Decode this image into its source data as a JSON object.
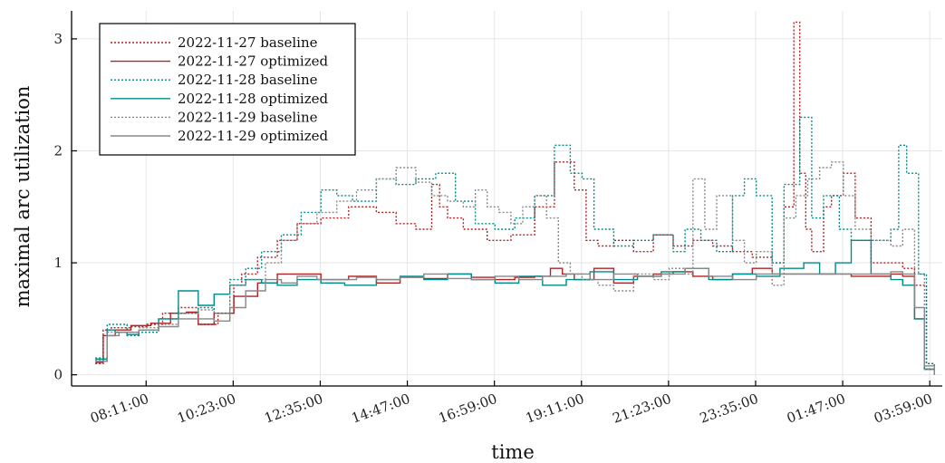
{
  "chart_data": {
    "type": "line",
    "xlabel": "time",
    "ylabel": "maximal arc utilization",
    "x_ticks": [
      "08:11:00",
      "10:23:00",
      "12:35:00",
      "14:47:00",
      "16:59:00",
      "19:11:00",
      "21:23:00",
      "23:35:00",
      "01:47:00",
      "03:59:00"
    ],
    "y_ticks": [
      0,
      1,
      2,
      3
    ],
    "xlim_hours": [
      6.3,
      28.3
    ],
    "ylim": [
      -0.1,
      3.25
    ],
    "grid": true,
    "legend_position": "top-left",
    "x_unit_note": "hours of day; values above 24 continue past midnight",
    "series": [
      {
        "name": "2022-11-27 baseline",
        "color": "#b22222",
        "dash": "dot",
        "x": [
          6.9,
          7.1,
          7.3,
          7.8,
          8.2,
          8.6,
          9.0,
          9.5,
          10.0,
          10.4,
          10.6,
          11.0,
          11.5,
          12.0,
          12.6,
          13.3,
          14.0,
          14.5,
          15.0,
          15.4,
          15.6,
          15.8,
          16.2,
          16.8,
          17.4,
          18.0,
          18.5,
          19.0,
          19.3,
          19.6,
          20.0,
          20.5,
          21.0,
          21.5,
          22.0,
          22.5,
          23.0,
          23.5,
          24.0,
          24.3,
          24.55,
          24.7,
          24.85,
          25.0,
          25.3,
          25.5,
          25.8,
          26.1,
          26.5,
          27.0,
          27.3,
          27.6,
          27.9,
          28.1
        ],
        "y": [
          0.1,
          0.4,
          0.42,
          0.43,
          0.45,
          0.55,
          0.6,
          0.45,
          0.55,
          0.8,
          0.9,
          1.05,
          1.2,
          1.35,
          1.4,
          1.5,
          1.45,
          1.35,
          1.3,
          1.7,
          1.5,
          1.4,
          1.3,
          1.2,
          1.25,
          1.5,
          1.9,
          1.65,
          1.2,
          1.15,
          1.2,
          1.1,
          1.25,
          1.15,
          1.2,
          1.15,
          1.1,
          1.05,
          1.0,
          1.5,
          3.15,
          1.8,
          1.3,
          1.1,
          1.5,
          1.6,
          1.8,
          1.4,
          1.0,
          1.0,
          0.95,
          0.8,
          0.1,
          0.0
        ]
      },
      {
        "name": "2022-11-27 optimized",
        "color": "#b22222",
        "dash": "solid",
        "x": [
          6.9,
          7.1,
          7.4,
          7.8,
          8.3,
          8.8,
          9.2,
          9.5,
          9.9,
          10.4,
          11.0,
          11.5,
          12.0,
          12.6,
          13.3,
          14.0,
          14.6,
          15.2,
          15.8,
          16.4,
          17.0,
          17.5,
          18.0,
          18.4,
          18.7,
          19.0,
          19.5,
          20.0,
          20.5,
          21.0,
          21.5,
          22.0,
          22.5,
          23.0,
          23.5,
          24.0,
          24.5,
          25.0,
          25.5,
          26.0,
          26.5,
          27.0,
          27.3,
          27.6,
          27.85,
          28.1
        ],
        "y": [
          0.11,
          0.35,
          0.4,
          0.44,
          0.46,
          0.55,
          0.56,
          0.45,
          0.55,
          0.7,
          0.82,
          0.9,
          0.9,
          0.85,
          0.88,
          0.82,
          0.87,
          0.86,
          0.9,
          0.87,
          0.85,
          0.87,
          0.88,
          0.95,
          0.9,
          0.85,
          0.95,
          0.82,
          0.88,
          0.9,
          0.92,
          0.88,
          0.85,
          0.9,
          0.95,
          0.9,
          0.9,
          0.9,
          0.9,
          0.88,
          0.88,
          0.9,
          0.88,
          0.5,
          0.05,
          0.0
        ]
      },
      {
        "name": "2022-11-28 baseline",
        "color": "#008b8b",
        "dash": "dot",
        "x": [
          6.9,
          7.2,
          7.4,
          7.7,
          8.0,
          8.5,
          9.0,
          9.5,
          9.9,
          10.3,
          10.7,
          11.1,
          11.6,
          12.1,
          12.6,
          13.0,
          13.4,
          14.0,
          14.5,
          15.0,
          15.5,
          16.0,
          16.5,
          17.0,
          17.5,
          18.0,
          18.5,
          18.9,
          19.2,
          19.5,
          20.0,
          20.5,
          21.0,
          21.5,
          21.8,
          22.2,
          22.6,
          23.0,
          23.3,
          23.6,
          24.0,
          24.3,
          24.7,
          25.0,
          25.3,
          25.7,
          26.0,
          26.5,
          27.0,
          27.2,
          27.4,
          27.7,
          27.9,
          28.1
        ],
        "y": [
          0.15,
          0.45,
          0.45,
          0.35,
          0.38,
          0.5,
          0.55,
          0.6,
          0.55,
          0.85,
          0.95,
          1.1,
          1.25,
          1.45,
          1.65,
          1.6,
          1.55,
          1.75,
          1.7,
          1.75,
          1.8,
          1.55,
          1.35,
          1.3,
          1.4,
          1.6,
          2.05,
          1.8,
          1.75,
          1.3,
          1.15,
          1.2,
          1.25,
          1.1,
          1.3,
          1.2,
          1.1,
          1.6,
          1.75,
          1.6,
          1.0,
          1.7,
          2.3,
          1.4,
          1.6,
          1.3,
          1.2,
          1.2,
          1.3,
          2.05,
          1.8,
          0.9,
          0.1,
          0.0
        ]
      },
      {
        "name": "2022-11-28 optimized",
        "color": "#008b8b",
        "dash": "solid",
        "x": [
          6.9,
          7.2,
          7.4,
          7.7,
          8.0,
          8.5,
          9.0,
          9.5,
          9.9,
          10.3,
          10.7,
          11.1,
          11.5,
          12.0,
          12.6,
          13.2,
          14.0,
          14.6,
          15.2,
          15.8,
          16.4,
          17.0,
          17.6,
          18.2,
          18.8,
          19.4,
          20.0,
          20.6,
          21.2,
          21.8,
          22.4,
          23.0,
          23.6,
          24.2,
          24.8,
          25.2,
          25.6,
          26.0,
          26.5,
          27.0,
          27.3,
          27.6,
          27.85,
          28.1
        ],
        "y": [
          0.14,
          0.4,
          0.38,
          0.36,
          0.4,
          0.5,
          0.75,
          0.62,
          0.72,
          0.8,
          0.85,
          0.82,
          0.8,
          0.85,
          0.82,
          0.8,
          0.85,
          0.88,
          0.85,
          0.9,
          0.85,
          0.82,
          0.88,
          0.8,
          0.85,
          0.92,
          0.85,
          0.88,
          0.92,
          0.95,
          0.85,
          0.9,
          0.88,
          0.95,
          1.0,
          0.9,
          1.0,
          1.2,
          0.9,
          0.85,
          0.8,
          0.5,
          0.05,
          0.0
        ]
      },
      {
        "name": "2022-11-29 baseline",
        "color": "#888888",
        "dash": "dot",
        "x": [
          6.9,
          7.2,
          7.5,
          8.0,
          8.5,
          9.0,
          9.5,
          9.9,
          10.3,
          10.7,
          11.2,
          11.6,
          12.0,
          12.5,
          13.0,
          13.5,
          14.0,
          14.5,
          15.0,
          15.4,
          15.8,
          16.2,
          16.5,
          16.8,
          17.1,
          17.4,
          17.7,
          18.0,
          18.3,
          18.6,
          18.9,
          19.2,
          19.6,
          20.0,
          20.5,
          21.0,
          21.4,
          21.8,
          22.0,
          22.3,
          22.6,
          23.0,
          23.3,
          23.6,
          24.0,
          24.3,
          24.6,
          24.9,
          25.2,
          25.5,
          25.8,
          26.1,
          26.5,
          27.0,
          27.3,
          27.6,
          27.85,
          28.1
        ],
        "y": [
          0.13,
          0.38,
          0.38,
          0.42,
          0.45,
          0.55,
          0.58,
          0.55,
          0.8,
          0.85,
          1.0,
          1.2,
          1.35,
          1.45,
          1.55,
          1.65,
          1.75,
          1.85,
          1.72,
          1.6,
          1.55,
          1.5,
          1.65,
          1.5,
          1.45,
          1.35,
          1.5,
          1.6,
          1.4,
          1.0,
          0.9,
          0.85,
          0.8,
          0.75,
          0.9,
          0.85,
          0.95,
          0.9,
          1.75,
          1.3,
          1.6,
          1.2,
          1.0,
          1.1,
          0.8,
          1.4,
          1.6,
          1.75,
          1.85,
          1.9,
          1.6,
          1.3,
          1.2,
          1.15,
          1.3,
          0.9,
          0.05,
          0.0
        ]
      },
      {
        "name": "2022-11-29 optimized",
        "color": "#888888",
        "dash": "solid",
        "x": [
          6.9,
          7.2,
          7.5,
          8.0,
          8.5,
          9.0,
          9.5,
          9.9,
          10.3,
          10.7,
          11.2,
          11.6,
          12.0,
          12.5,
          13.0,
          13.5,
          14.0,
          14.6,
          15.2,
          15.8,
          16.4,
          17.0,
          17.6,
          18.2,
          18.8,
          19.4,
          20.0,
          20.6,
          21.2,
          21.8,
          22.4,
          23.0,
          23.6,
          24.2,
          24.8,
          25.4,
          26.0,
          26.6,
          27.0,
          27.3,
          27.6,
          27.85,
          28.1
        ],
        "y": [
          0.12,
          0.35,
          0.38,
          0.4,
          0.43,
          0.5,
          0.5,
          0.48,
          0.6,
          0.75,
          0.85,
          0.82,
          0.88,
          0.85,
          0.85,
          0.87,
          0.85,
          0.87,
          0.9,
          0.86,
          0.85,
          0.88,
          0.85,
          0.88,
          0.9,
          0.85,
          0.9,
          0.88,
          0.9,
          0.95,
          0.88,
          0.85,
          0.9,
          0.9,
          0.9,
          0.9,
          0.9,
          0.9,
          0.92,
          0.9,
          0.6,
          0.08,
          0.0
        ]
      }
    ]
  }
}
